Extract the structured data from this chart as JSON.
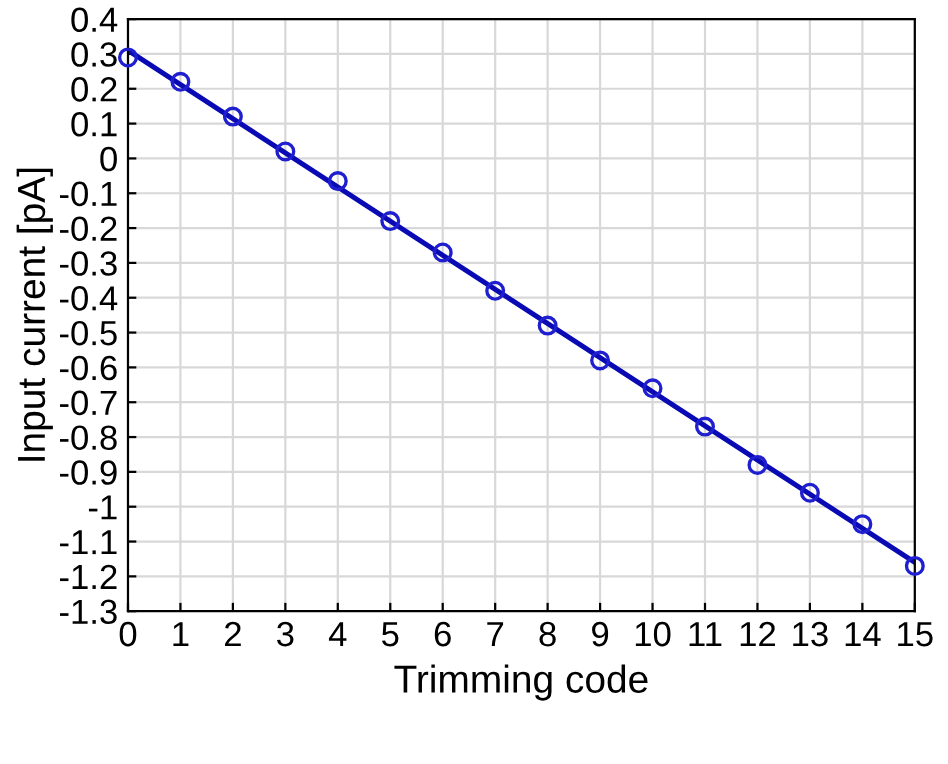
{
  "chart_data": {
    "type": "scatter",
    "xlabel": "Trimming code",
    "ylabel": "Input current [pA]",
    "xlim": [
      0,
      15
    ],
    "xticks": [
      0,
      1,
      2,
      3,
      4,
      5,
      6,
      7,
      8,
      9,
      10,
      11,
      12,
      13,
      14,
      15
    ],
    "ylim": [
      -1.3,
      0.4
    ],
    "yticks": [
      0.4,
      0.3,
      0.2,
      0.1,
      0,
      {
        "value": -0.1,
        "label": "-0.1"
      },
      {
        "value": -0.2,
        "label": "-0.2"
      },
      {
        "value": -0.3,
        "label": "-0.3"
      },
      {
        "value": -0.4,
        "label": "-0.4"
      },
      {
        "value": -0.5,
        "label": "-0.5"
      },
      {
        "value": -0.6,
        "label": "-0.6"
      },
      {
        "value": -0.7,
        "label": "-0.7"
      },
      {
        "value": -0.8,
        "label": "-0.8"
      },
      {
        "value": -0.9,
        "label": "-0.9"
      },
      {
        "value": -1,
        "label": "-1"
      },
      {
        "value": -1.1,
        "label": "-1.1"
      },
      {
        "value": -1.2,
        "label": "-1.2"
      },
      {
        "value": -1.3,
        "label": "-1.3"
      }
    ],
    "grid": true,
    "legend": false,
    "series": [
      {
        "color": "#1f1fd0",
        "marker": "circle",
        "x": [
          0,
          1,
          2,
          3,
          4,
          5,
          6,
          7,
          8,
          9,
          10,
          11,
          12,
          13,
          14,
          15
        ],
        "values": [
          0.29,
          0.22,
          0.12,
          0.02,
          -0.065,
          -0.18,
          -0.27,
          -0.38,
          -0.48,
          -0.58,
          -0.66,
          -0.77,
          -0.88,
          -0.96,
          -1.05,
          -1.17
        ]
      },
      {
        "type": "line",
        "color": "#0a0ab4",
        "marker": "none",
        "line_style": "solid",
        "x": [
          0,
          15
        ],
        "values": [
          0.31,
          -1.16
        ]
      }
    ]
  }
}
